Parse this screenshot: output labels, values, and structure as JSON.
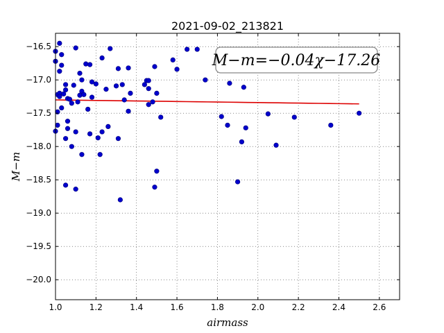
{
  "chart_data": {
    "type": "scatter",
    "title": "2021-09-02_213821",
    "xlabel": "airmass",
    "ylabel": "M−m",
    "xlim": [
      1.0,
      2.7
    ],
    "ylim": [
      -20.3,
      -16.3
    ],
    "y_inverted": true,
    "grid": true,
    "x_ticks": [
      1.0,
      1.2,
      1.4,
      1.6,
      1.8,
      2.0,
      2.2,
      2.4,
      2.6
    ],
    "x_tick_labels": [
      "1.0",
      "1.2",
      "1.4",
      "1.6",
      "1.8",
      "2.0",
      "2.2",
      "2.4",
      "2.6"
    ],
    "y_ticks": [
      -16.5,
      -17.0,
      -17.5,
      -18.0,
      -18.5,
      -19.0,
      -19.5,
      -20.0
    ],
    "y_tick_labels": [
      "−16.5",
      "−17.0",
      "−17.5",
      "−18.0",
      "−18.5",
      "−19.0",
      "−19.5",
      "−20.0"
    ],
    "annotation": "M−m=−0.04χ−17.26",
    "marker_color": "#0000cc",
    "fit_color": "#dd0000",
    "fit": {
      "slope": -0.04,
      "intercept": -17.26,
      "x_range": [
        1.0,
        2.5
      ]
    },
    "points": [
      {
        "x": 1.0,
        "y": -16.57
      },
      {
        "x": 1.0,
        "y": -16.72
      },
      {
        "x": 1.01,
        "y": -17.22
      },
      {
        "x": 1.01,
        "y": -17.48
      },
      {
        "x": 1.0,
        "y": -17.77
      },
      {
        "x": 1.01,
        "y": -17.68
      },
      {
        "x": 1.02,
        "y": -16.45
      },
      {
        "x": 1.02,
        "y": -16.87
      },
      {
        "x": 1.02,
        "y": -17.2
      },
      {
        "x": 1.03,
        "y": -16.62
      },
      {
        "x": 1.03,
        "y": -16.78
      },
      {
        "x": 1.02,
        "y": -17.25
      },
      {
        "x": 1.03,
        "y": -17.42
      },
      {
        "x": 1.04,
        "y": -17.21
      },
      {
        "x": 1.05,
        "y": -17.07
      },
      {
        "x": 1.05,
        "y": -17.15
      },
      {
        "x": 1.05,
        "y": -17.88
      },
      {
        "x": 1.05,
        "y": -18.58
      },
      {
        "x": 1.06,
        "y": -17.28
      },
      {
        "x": 1.06,
        "y": -17.62
      },
      {
        "x": 1.06,
        "y": -17.73
      },
      {
        "x": 1.07,
        "y": -17.29
      },
      {
        "x": 1.08,
        "y": -17.35
      },
      {
        "x": 1.08,
        "y": -18.0
      },
      {
        "x": 1.09,
        "y": -17.08
      },
      {
        "x": 1.1,
        "y": -16.52
      },
      {
        "x": 1.1,
        "y": -17.78
      },
      {
        "x": 1.1,
        "y": -18.64
      },
      {
        "x": 1.11,
        "y": -17.33
      },
      {
        "x": 1.12,
        "y": -17.23
      },
      {
        "x": 1.12,
        "y": -16.9
      },
      {
        "x": 1.13,
        "y": -17.0
      },
      {
        "x": 1.13,
        "y": -17.17
      },
      {
        "x": 1.13,
        "y": -18.12
      },
      {
        "x": 1.14,
        "y": -17.22
      },
      {
        "x": 1.15,
        "y": -16.76
      },
      {
        "x": 1.16,
        "y": -17.44
      },
      {
        "x": 1.17,
        "y": -16.77
      },
      {
        "x": 1.17,
        "y": -17.81
      },
      {
        "x": 1.18,
        "y": -17.03
      },
      {
        "x": 1.18,
        "y": -17.26
      },
      {
        "x": 1.2,
        "y": -17.06
      },
      {
        "x": 1.21,
        "y": -17.87
      },
      {
        "x": 1.22,
        "y": -18.12
      },
      {
        "x": 1.23,
        "y": -16.67
      },
      {
        "x": 1.23,
        "y": -17.78
      },
      {
        "x": 1.25,
        "y": -17.14
      },
      {
        "x": 1.26,
        "y": -17.7
      },
      {
        "x": 1.27,
        "y": -16.53
      },
      {
        "x": 1.3,
        "y": -17.09
      },
      {
        "x": 1.31,
        "y": -16.83
      },
      {
        "x": 1.31,
        "y": -17.88
      },
      {
        "x": 1.32,
        "y": -18.8
      },
      {
        "x": 1.33,
        "y": -17.07
      },
      {
        "x": 1.34,
        "y": -17.3
      },
      {
        "x": 1.36,
        "y": -17.47
      },
      {
        "x": 1.36,
        "y": -16.82
      },
      {
        "x": 1.37,
        "y": -17.2
      },
      {
        "x": 1.44,
        "y": -17.07
      },
      {
        "x": 1.45,
        "y": -17.01
      },
      {
        "x": 1.46,
        "y": -17.01
      },
      {
        "x": 1.46,
        "y": -17.13
      },
      {
        "x": 1.46,
        "y": -17.37
      },
      {
        "x": 1.48,
        "y": -17.33
      },
      {
        "x": 1.49,
        "y": -16.8
      },
      {
        "x": 1.5,
        "y": -17.2
      },
      {
        "x": 1.5,
        "y": -18.37
      },
      {
        "x": 1.49,
        "y": -18.61
      },
      {
        "x": 1.52,
        "y": -17.56
      },
      {
        "x": 1.58,
        "y": -16.7
      },
      {
        "x": 1.6,
        "y": -16.84
      },
      {
        "x": 1.65,
        "y": -16.54
      },
      {
        "x": 1.7,
        "y": -16.54
      },
      {
        "x": 1.74,
        "y": -17.0
      },
      {
        "x": 1.82,
        "y": -17.55
      },
      {
        "x": 1.85,
        "y": -17.68
      },
      {
        "x": 1.86,
        "y": -17.05
      },
      {
        "x": 1.9,
        "y": -18.53
      },
      {
        "x": 1.92,
        "y": -17.93
      },
      {
        "x": 1.93,
        "y": -17.11
      },
      {
        "x": 1.94,
        "y": -17.72
      },
      {
        "x": 2.05,
        "y": -17.51
      },
      {
        "x": 2.09,
        "y": -17.98
      },
      {
        "x": 2.18,
        "y": -17.56
      },
      {
        "x": 2.36,
        "y": -17.68
      },
      {
        "x": 2.5,
        "y": -17.5
      }
    ]
  }
}
